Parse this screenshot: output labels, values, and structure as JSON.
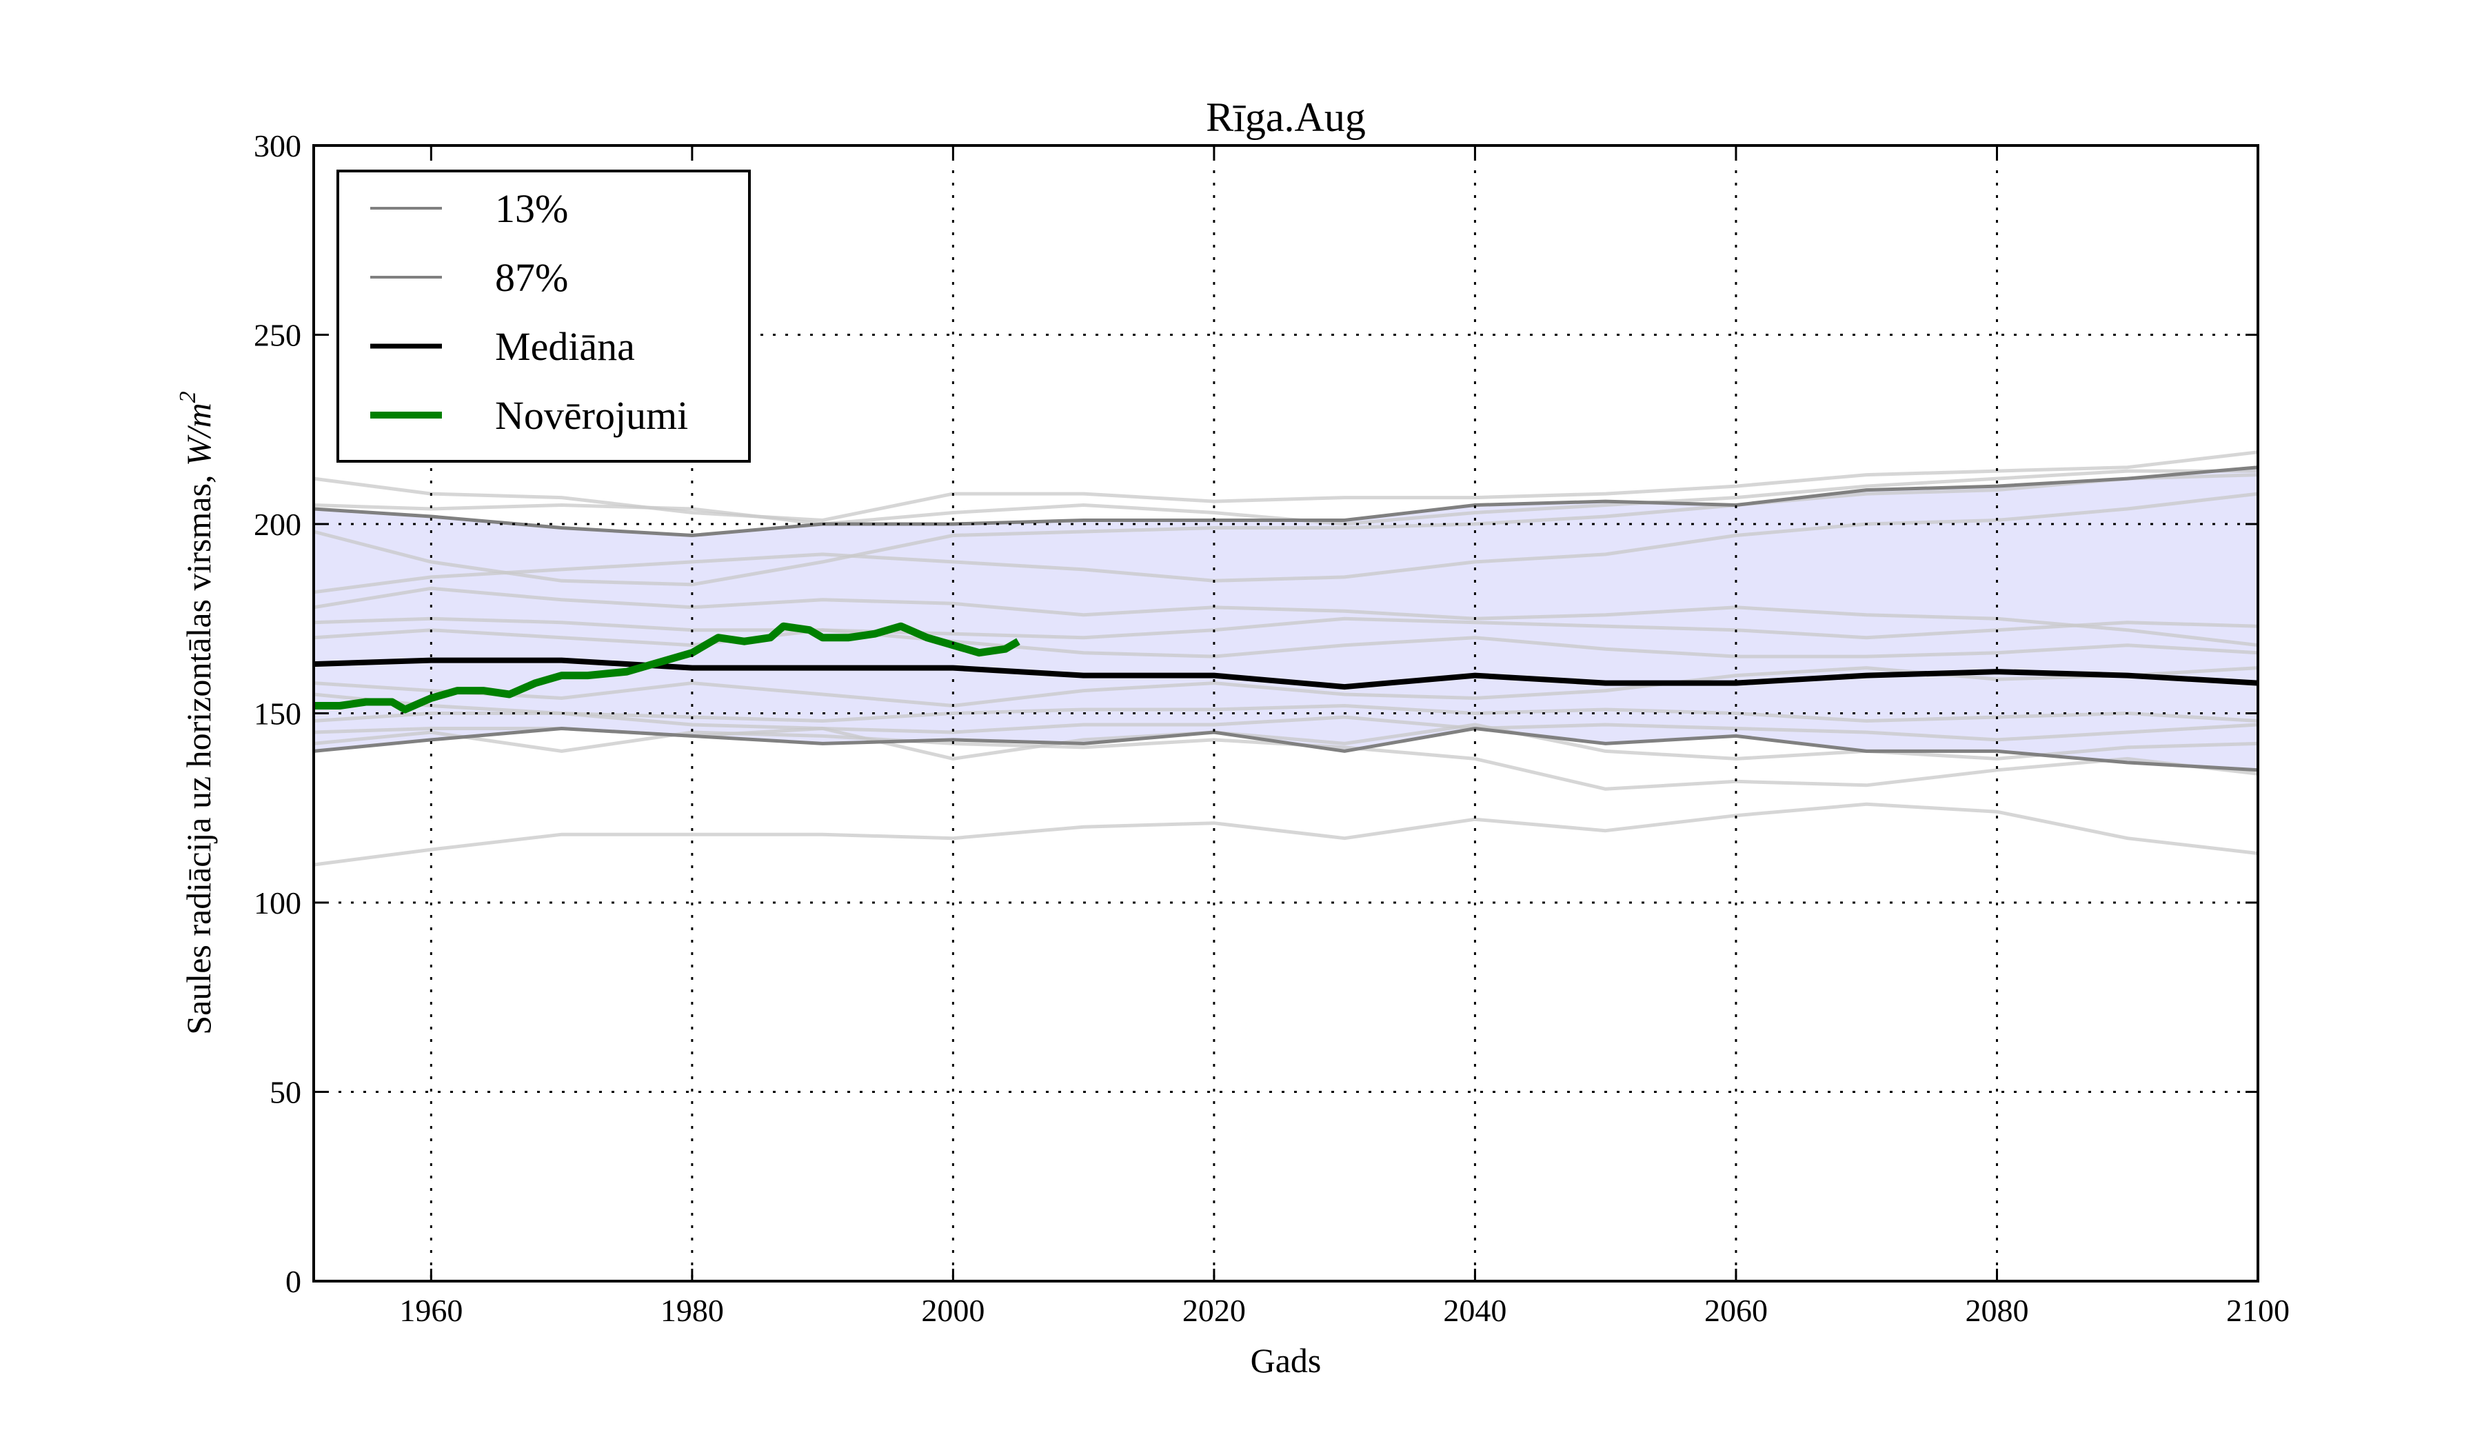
{
  "chart_data": {
    "type": "line",
    "title": "Rīga.Aug",
    "xlabel": "Gads",
    "ylabel": "Saules radiācija uz horizontālas virsmas, ",
    "ylabel_unit": "W/m",
    "ylabel_unit_exp": "2",
    "xlim": [
      1951,
      2100
    ],
    "ylim": [
      0,
      300
    ],
    "xticks": [
      "1960",
      "1980",
      "2000",
      "2020",
      "2040",
      "2060",
      "2080",
      "2100"
    ],
    "yticks": [
      "0",
      "50",
      "100",
      "150",
      "200",
      "250",
      "300"
    ],
    "grid": true,
    "legend_position": "top-left",
    "legend": [
      "13%",
      "87%",
      "Mediāna",
      "Novērojumi"
    ],
    "colors": {
      "band": "#e4e4fc",
      "percentile": "#808080",
      "median": "#000000",
      "observations": "#008000",
      "ensemble": "#c8c8c8"
    },
    "x": [
      1951,
      1960,
      1970,
      1980,
      1990,
      2000,
      2010,
      2020,
      2030,
      2040,
      2050,
      2060,
      2070,
      2080,
      2090,
      2100
    ],
    "series": [
      {
        "name": "13%",
        "values": [
          140,
          143,
          146,
          144,
          142,
          143,
          142,
          145,
          140,
          146,
          142,
          144,
          140,
          140,
          137,
          135
        ]
      },
      {
        "name": "87%",
        "values": [
          204,
          202,
          199,
          197,
          200,
          200,
          201,
          201,
          201,
          205,
          206,
          205,
          209,
          210,
          212,
          215
        ]
      },
      {
        "name": "Mediāna",
        "values": [
          163,
          164,
          164,
          162,
          162,
          162,
          160,
          160,
          157,
          160,
          158,
          158,
          160,
          161,
          160,
          158
        ]
      }
    ],
    "observations": {
      "name": "Novērojumi",
      "x": [
        1951,
        1953,
        1955,
        1957,
        1958,
        1960,
        1962,
        1964,
        1966,
        1968,
        1970,
        1972,
        1975,
        1978,
        1980,
        1982,
        1984,
        1986,
        1987,
        1989,
        1990,
        1992,
        1994,
        1996,
        1998,
        2000,
        2002,
        2004,
        2005
      ],
      "values": [
        152,
        152,
        153,
        153,
        151,
        154,
        156,
        156,
        155,
        158,
        160,
        160,
        161,
        164,
        166,
        170,
        169,
        170,
        173,
        172,
        170,
        170,
        171,
        173,
        170,
        168,
        166,
        167,
        169
      ]
    },
    "ensemble": [
      [
        212,
        208,
        207,
        203,
        201,
        208,
        208,
        206,
        207,
        207,
        208,
        210,
        213,
        214,
        215,
        219
      ],
      [
        205,
        204,
        205,
        204,
        200,
        203,
        205,
        203,
        200,
        203,
        205,
        207,
        210,
        212,
        214,
        214
      ],
      [
        198,
        190,
        185,
        184,
        190,
        197,
        198,
        199,
        199,
        200,
        202,
        205,
        208,
        209,
        212,
        213
      ],
      [
        182,
        186,
        188,
        190,
        192,
        190,
        188,
        185,
        186,
        190,
        192,
        197,
        200,
        201,
        204,
        208
      ],
      [
        178,
        183,
        180,
        178,
        180,
        179,
        176,
        178,
        177,
        175,
        176,
        178,
        176,
        175,
        172,
        168
      ],
      [
        174,
        175,
        174,
        172,
        172,
        171,
        170,
        172,
        175,
        174,
        173,
        172,
        170,
        172,
        174,
        173
      ],
      [
        170,
        172,
        170,
        168,
        172,
        169,
        166,
        165,
        168,
        170,
        167,
        165,
        165,
        166,
        168,
        166
      ],
      [
        158,
        156,
        154,
        158,
        155,
        152,
        156,
        158,
        155,
        154,
        156,
        160,
        162,
        159,
        160,
        162
      ],
      [
        155,
        152,
        150,
        149,
        148,
        150,
        151,
        151,
        152,
        150,
        151,
        150,
        148,
        149,
        150,
        148
      ],
      [
        148,
        150,
        150,
        147,
        146,
        145,
        147,
        147,
        149,
        146,
        147,
        146,
        145,
        143,
        145,
        147
      ],
      [
        145,
        146,
        146,
        144,
        146,
        138,
        143,
        145,
        142,
        147,
        140,
        138,
        140,
        138,
        141,
        142
      ],
      [
        142,
        145,
        140,
        145,
        144,
        142,
        141,
        143,
        141,
        138,
        130,
        132,
        131,
        135,
        138,
        134
      ],
      [
        110,
        114,
        118,
        118,
        118,
        117,
        120,
        121,
        117,
        122,
        119,
        123,
        126,
        124,
        117,
        113
      ]
    ]
  }
}
